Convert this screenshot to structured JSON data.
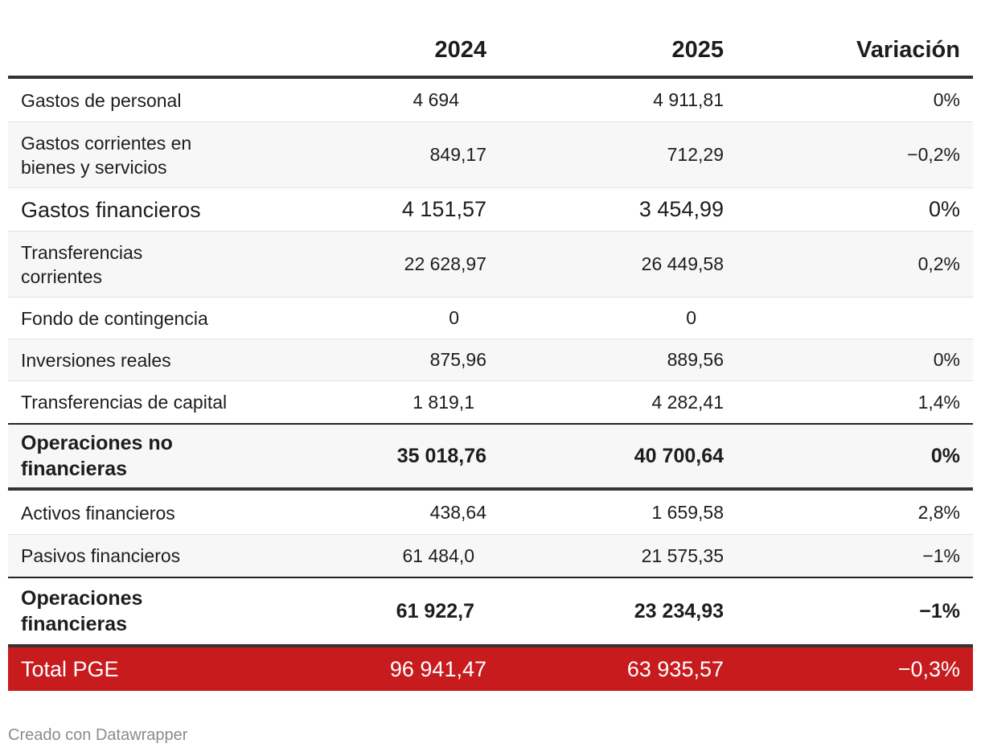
{
  "header": {
    "col1": "",
    "col2": "2024",
    "col3": "2025",
    "col4": "Variación"
  },
  "rows": [
    {
      "label": "Gastos de personal",
      "v2024": "4 694",
      "v2025": "4 911,81",
      "var": "0%"
    },
    {
      "label": "Gastos corrientes en bienes y servicios",
      "v2024": "849,17",
      "v2025": "712,29",
      "var": "−0,2%"
    },
    {
      "label": "Gastos financieros",
      "v2024": "4 151,57",
      "v2025": "3 454,99",
      "var": "0%"
    },
    {
      "label": "Transferencias corrientes",
      "v2024": "22 628,97",
      "v2025": "26 449,58",
      "var": "0,2%"
    },
    {
      "label": "Fondo de contingencia",
      "v2024": "0",
      "v2025": "0",
      "var": ""
    },
    {
      "label": "Inversiones reales",
      "v2024": "875,96",
      "v2025": "889,56",
      "var": "0%"
    },
    {
      "label": "Transferencias de capital",
      "v2024": "1 819,1",
      "v2025": "4 282,41",
      "var": "1,4%"
    },
    {
      "label": "Operaciones no financieras",
      "v2024": "35 018,76",
      "v2025": "40 700,64",
      "var": "0%"
    },
    {
      "label": "Activos financieros",
      "v2024": "438,64",
      "v2025": "1 659,58",
      "var": "2,8%"
    },
    {
      "label": "Pasivos financieros",
      "v2024": "61 484,0",
      "v2025": "21 575,35",
      "var": "−1%"
    },
    {
      "label": "Operaciones financieras",
      "v2024": "61 922,7",
      "v2025": "23 234,93",
      "var": "−1%"
    },
    {
      "label": "Total PGE",
      "v2024": "96 941,47",
      "v2025": "63 935,57",
      "var": "−0,3%"
    }
  ],
  "footer": {
    "credit": "Creado con Datawrapper"
  },
  "colors": {
    "total_bg": "#c71b1e",
    "stripe": "#f7f7f7",
    "rule": "#333333"
  }
}
